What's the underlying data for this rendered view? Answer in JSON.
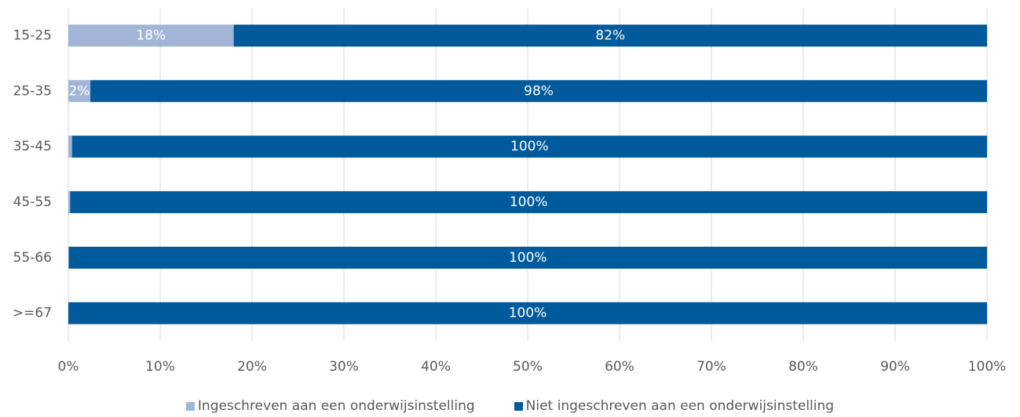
{
  "chart_data": {
    "type": "bar",
    "orientation": "horizontal",
    "stacked": true,
    "categories": [
      "15-25",
      "25-35",
      "35-45",
      "45-55",
      "55-66",
      ">=67"
    ],
    "series": [
      {
        "name": "Ingeschreven aan een onderwijsinstelling",
        "color": "#a2b5d9",
        "values": [
          18,
          2.4,
          0.4,
          0.2,
          0.05,
          0
        ],
        "labels": [
          "18%",
          "2%",
          "",
          "",
          "",
          ""
        ]
      },
      {
        "name": "Niet ingeschreven aan een onderwijsinstelling",
        "color": "#005a9c",
        "values": [
          82,
          97.6,
          99.6,
          99.8,
          99.95,
          100
        ],
        "labels": [
          "82%",
          "98%",
          "100%",
          "100%",
          "100%",
          "100%"
        ]
      }
    ],
    "xlim": [
      0,
      100
    ],
    "xticks": [
      "0%",
      "10%",
      "20%",
      "30%",
      "40%",
      "50%",
      "60%",
      "70%",
      "80%",
      "90%",
      "100%"
    ],
    "grid": true,
    "legend_position": "bottom"
  }
}
